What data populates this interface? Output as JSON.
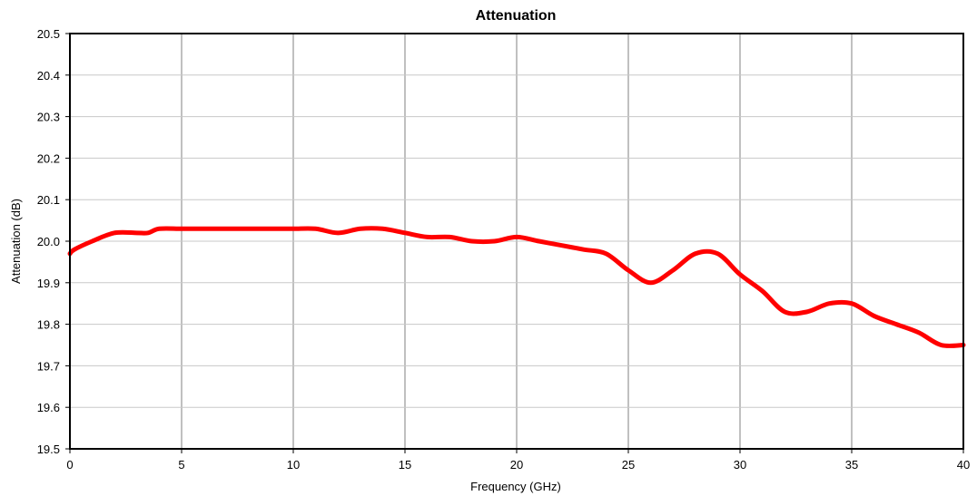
{
  "chart_data": {
    "type": "line",
    "title": "Attenuation",
    "xlabel": "Frequency (GHz)",
    "ylabel": "Attenuation (dB)",
    "xlim": [
      0,
      40
    ],
    "ylim": [
      19.5,
      20.5
    ],
    "xticks": [
      0,
      5,
      10,
      15,
      20,
      25,
      30,
      35,
      40
    ],
    "yticks": [
      19.5,
      19.6,
      19.7,
      19.8,
      19.9,
      20.0,
      20.1,
      20.2,
      20.3,
      20.4,
      20.5
    ],
    "grid": {
      "vertical": true,
      "horizontal": true
    },
    "series": [
      {
        "color": "#ff0000",
        "x": [
          0,
          0.2,
          1,
          2,
          3,
          3.5,
          4,
          5,
          6,
          7,
          8,
          9,
          10,
          11,
          12,
          13,
          14,
          15,
          16,
          17,
          18,
          19,
          20,
          21,
          22,
          23,
          24,
          25,
          26,
          27,
          28,
          29,
          30,
          31,
          32,
          33,
          34,
          35,
          36,
          37,
          38,
          39,
          40
        ],
        "y": [
          19.97,
          19.98,
          20.0,
          20.02,
          20.02,
          20.02,
          20.03,
          20.03,
          20.03,
          20.03,
          20.03,
          20.03,
          20.03,
          20.03,
          20.02,
          20.03,
          20.03,
          20.02,
          20.01,
          20.01,
          20.0,
          20.0,
          20.01,
          20.0,
          19.99,
          19.98,
          19.97,
          19.93,
          19.9,
          19.93,
          19.97,
          19.97,
          19.92,
          19.88,
          19.83,
          19.83,
          19.85,
          19.85,
          19.82,
          19.8,
          19.78,
          19.75,
          19.75
        ]
      }
    ]
  }
}
